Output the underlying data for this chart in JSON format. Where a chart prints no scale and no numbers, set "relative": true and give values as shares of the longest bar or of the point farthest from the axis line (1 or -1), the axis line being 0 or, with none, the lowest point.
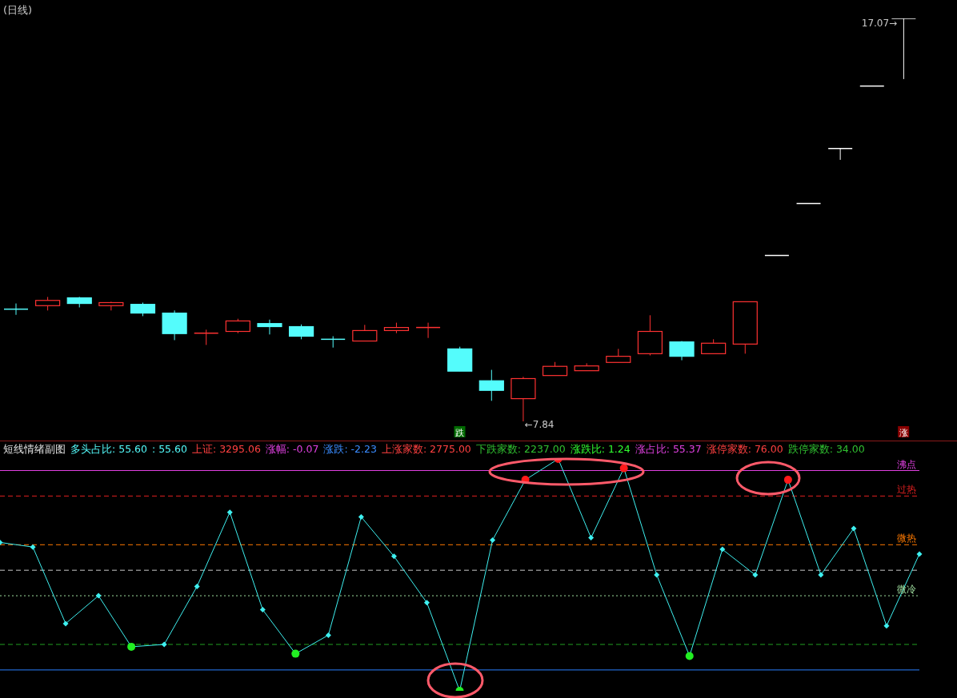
{
  "chart_data": [
    {
      "type": "candlestick",
      "title": "(日线)",
      "categories": [
        null,
        null,
        null,
        null,
        null,
        null,
        null,
        null,
        null,
        null,
        null,
        null,
        null,
        null,
        "跌",
        null,
        null,
        null,
        null,
        null,
        null,
        null,
        null,
        null,
        null,
        null,
        null,
        null,
        "涨"
      ],
      "ohlc": [
        [
          10.41,
          10.54,
          10.28,
          10.41
        ],
        [
          10.49,
          10.69,
          10.38,
          10.61
        ],
        [
          10.67,
          10.69,
          10.45,
          10.54
        ],
        [
          10.49,
          10.58,
          10.38,
          10.56
        ],
        [
          10.52,
          10.56,
          10.25,
          10.32
        ],
        [
          10.32,
          10.38,
          9.7,
          9.85
        ],
        [
          9.86,
          9.94,
          9.59,
          9.86
        ],
        [
          9.9,
          10.19,
          9.86,
          10.14
        ],
        [
          10.08,
          10.17,
          9.83,
          10.01
        ],
        [
          10.01,
          10.06,
          9.72,
          9.79
        ],
        [
          9.72,
          9.79,
          9.53,
          9.72
        ],
        [
          9.68,
          10.05,
          9.68,
          9.92
        ],
        [
          9.92,
          10.1,
          9.86,
          9.99
        ],
        [
          9.99,
          10.1,
          9.75,
          9.99
        ],
        [
          9.5,
          9.55,
          8.99,
          8.99
        ],
        [
          8.77,
          9.02,
          8.31,
          8.55
        ],
        [
          8.36,
          8.86,
          7.84,
          8.82
        ],
        [
          8.89,
          9.2,
          8.89,
          9.1
        ],
        [
          9.0,
          9.17,
          9.0,
          9.11
        ],
        [
          9.19,
          9.5,
          9.19,
          9.33
        ],
        [
          9.39,
          10.27,
          9.35,
          9.9
        ],
        [
          9.66,
          9.68,
          9.24,
          9.33
        ],
        [
          9.39,
          9.72,
          9.39,
          9.63
        ],
        [
          9.61,
          10.58,
          9.39,
          10.58
        ],
        [
          11.64,
          11.64,
          11.64,
          11.64
        ],
        [
          12.83,
          12.83,
          12.83,
          12.83
        ],
        [
          14.09,
          14.09,
          13.83,
          14.09
        ],
        [
          15.52,
          15.52,
          15.52,
          15.52
        ],
        [
          17.07,
          17.07,
          15.68,
          17.07
        ]
      ],
      "colors": [
        "#54fcfc",
        "#ff3232",
        "#54fcfc",
        "#ff3232",
        "#54fcfc",
        "#54fcfc",
        "#ff3232",
        "#ff3232",
        "#54fcfc",
        "#54fcfc",
        "#54fcfc",
        "#ff3232",
        "#ff3232",
        "#ff3232",
        "#54fcfc",
        "#54fcfc",
        "#ff3232",
        "#ff3232",
        "#ff3232",
        "#ff3232",
        "#ff3232",
        "#54fcfc",
        "#ff3232",
        "#ff3232",
        "#ffffff",
        "#ffffff",
        "#ffffff",
        "#ffffff",
        "#ffffff"
      ],
      "annotations": [
        "17.07→",
        "←7.84"
      ]
    },
    {
      "type": "line",
      "title": "短线情绪副图",
      "relative": true,
      "marker": "diamond",
      "categories": [
        null,
        null,
        null,
        null,
        null,
        null,
        null,
        null,
        null,
        null,
        null,
        null,
        null,
        null,
        null,
        null,
        null,
        null,
        null,
        null,
        null,
        null,
        null,
        null,
        null,
        null,
        null,
        null,
        null
      ],
      "annotations": [
        "多头占比: 55.60",
        ": 55.60",
        "上证: 3295.06",
        "涨幅: -0.07",
        "涨跌: -2.23",
        "上涨家数: 2775.00",
        "下跌家数: 2237.00",
        "涨跌比: 1.24",
        "涨占比: 55.37",
        "涨停家数: 76.00",
        "跌停家数: 34.00"
      ],
      "series": [
        {
          "color": "#3ef0f0",
          "values": [
            0.64,
            0.62,
            0.29,
            0.41,
            0.19,
            0.2,
            0.45,
            0.77,
            0.35,
            0.16,
            0.24,
            0.75,
            0.58,
            0.38,
            0,
            0.65,
            0.91,
            1,
            0.66,
            0.96,
            0.5,
            0.15,
            0.61,
            0.5,
            0.91,
            0.5,
            0.7,
            0.28,
            0.59
          ],
          "colors": [
            "#3ef0f0",
            "#3ef0f0",
            "#3ef0f0",
            "#3ef0f0",
            "#22ee22",
            "#3ef0f0",
            "#3ef0f0",
            "#3ef0f0",
            "#3ef0f0",
            "#22ee22",
            "#3ef0f0",
            "#3ef0f0",
            "#3ef0f0",
            "#3ef0f0",
            "#22ee22",
            "#3ef0f0",
            "#ff1a1a",
            "#ff1a1a",
            "#3ef0f0",
            "#ff1a1a",
            "#3ef0f0",
            "#22ee22",
            "#3ef0f0",
            "#3ef0f0",
            "#ff1a1a",
            "#3ef0f0",
            "#3ef0f0",
            "#3ef0f0",
            "#3ef0f0"
          ]
        }
      ],
      "ref_lines": [
        {
          "axis": "y",
          "value": 0.95,
          "label": "沸点",
          "color": "#e040e0",
          "line_style": "solid"
        },
        {
          "axis": "y",
          "value": 0.84,
          "label": "过热",
          "color": "#e02020",
          "line_style": "dashed"
        },
        {
          "axis": "y",
          "value": 0.63,
          "label": "微热",
          "color": "#ff7a00",
          "line_style": "dashed"
        },
        {
          "axis": "y",
          "value": 0.52,
          "color": "#c8c8c8",
          "line_style": "dashed"
        },
        {
          "axis": "y",
          "value": 0.41,
          "label": "微冷",
          "color": "#a0e0a0",
          "line_style": "dotted"
        },
        {
          "axis": "y",
          "value": 0.2,
          "color": "#20a020",
          "line_style": "dashed"
        },
        {
          "axis": "y",
          "value": 0.09,
          "color": "#2a7fff",
          "line_style": "solid"
        }
      ]
    }
  ]
}
